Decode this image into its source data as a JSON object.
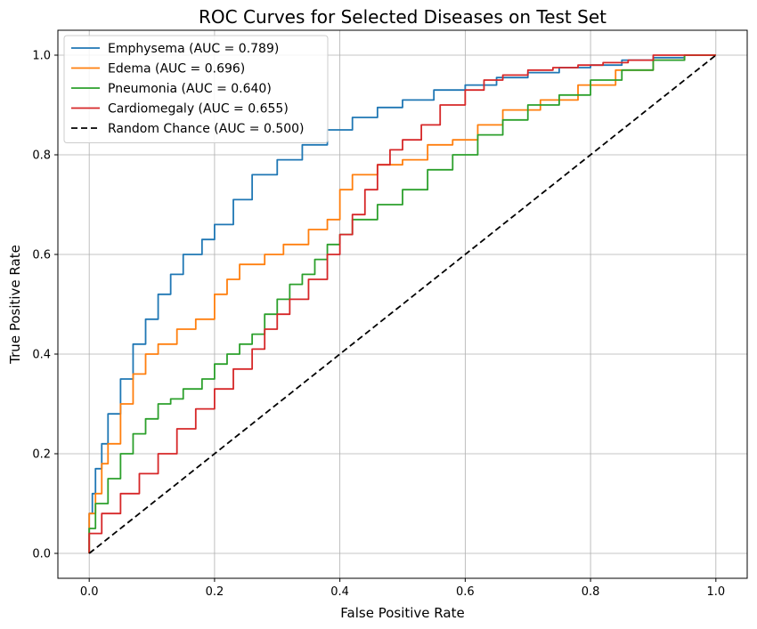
{
  "chart_data": {
    "type": "line",
    "title": "ROC Curves for Selected Diseases on Test Set",
    "xlabel": "False Positive Rate",
    "ylabel": "True Positive Rate",
    "xlim": [
      -0.05,
      1.05
    ],
    "ylim": [
      -0.05,
      1.05
    ],
    "xticks": [
      "0.0",
      "0.2",
      "0.4",
      "0.6",
      "0.8",
      "1.0"
    ],
    "yticks": [
      "0.0",
      "0.2",
      "0.4",
      "0.6",
      "0.8",
      "1.0"
    ],
    "grid": true,
    "legend_position": "top-left",
    "series": [
      {
        "name": "Emphysema (AUC = 0.789)",
        "color": "#1f77b4",
        "dash": "solid",
        "x": [
          0,
          0.005,
          0.01,
          0.02,
          0.03,
          0.05,
          0.07,
          0.09,
          0.11,
          0.13,
          0.15,
          0.18,
          0.2,
          0.23,
          0.26,
          0.3,
          0.34,
          0.38,
          0.42,
          0.46,
          0.5,
          0.55,
          0.6,
          0.65,
          0.7,
          0.75,
          0.8,
          0.85,
          0.9,
          0.95,
          1.0
        ],
        "y": [
          0,
          0.08,
          0.12,
          0.17,
          0.22,
          0.28,
          0.35,
          0.42,
          0.47,
          0.52,
          0.56,
          0.6,
          0.63,
          0.66,
          0.71,
          0.76,
          0.79,
          0.82,
          0.85,
          0.875,
          0.895,
          0.91,
          0.93,
          0.94,
          0.955,
          0.965,
          0.975,
          0.98,
          0.99,
          0.995,
          1.0
        ]
      },
      {
        "name": "Edema (AUC = 0.696)",
        "color": "#ff7f0e",
        "dash": "solid",
        "x": [
          0,
          0.01,
          0.02,
          0.03,
          0.05,
          0.07,
          0.09,
          0.11,
          0.14,
          0.17,
          0.2,
          0.22,
          0.24,
          0.26,
          0.28,
          0.31,
          0.35,
          0.38,
          0.4,
          0.42,
          0.46,
          0.5,
          0.54,
          0.58,
          0.62,
          0.66,
          0.72,
          0.78,
          0.84,
          0.9,
          0.95,
          1.0
        ],
        "y": [
          0,
          0.08,
          0.12,
          0.18,
          0.22,
          0.3,
          0.36,
          0.4,
          0.42,
          0.45,
          0.47,
          0.52,
          0.55,
          0.58,
          0.58,
          0.6,
          0.62,
          0.65,
          0.67,
          0.73,
          0.76,
          0.78,
          0.79,
          0.82,
          0.83,
          0.86,
          0.89,
          0.91,
          0.94,
          0.97,
          0.99,
          1.0
        ]
      },
      {
        "name": "Pneumonia (AUC = 0.640)",
        "color": "#2ca02c",
        "dash": "solid",
        "x": [
          0,
          0.01,
          0.03,
          0.05,
          0.07,
          0.09,
          0.11,
          0.13,
          0.15,
          0.18,
          0.2,
          0.22,
          0.24,
          0.26,
          0.28,
          0.3,
          0.32,
          0.34,
          0.36,
          0.38,
          0.4,
          0.42,
          0.46,
          0.5,
          0.54,
          0.58,
          0.62,
          0.66,
          0.7,
          0.75,
          0.8,
          0.85,
          0.9,
          0.95,
          1.0
        ],
        "y": [
          0,
          0.05,
          0.1,
          0.15,
          0.2,
          0.24,
          0.27,
          0.3,
          0.31,
          0.33,
          0.35,
          0.38,
          0.4,
          0.42,
          0.44,
          0.48,
          0.51,
          0.54,
          0.56,
          0.59,
          0.62,
          0.64,
          0.67,
          0.7,
          0.73,
          0.77,
          0.8,
          0.84,
          0.87,
          0.9,
          0.92,
          0.95,
          0.97,
          0.99,
          1.0
        ]
      },
      {
        "name": "Cardiomegaly (AUC = 0.655)",
        "color": "#d62728",
        "dash": "solid",
        "x": [
          0,
          0.02,
          0.05,
          0.08,
          0.11,
          0.14,
          0.17,
          0.2,
          0.23,
          0.26,
          0.28,
          0.3,
          0.32,
          0.35,
          0.38,
          0.4,
          0.42,
          0.44,
          0.46,
          0.48,
          0.5,
          0.53,
          0.56,
          0.6,
          0.63,
          0.66,
          0.7,
          0.74,
          0.78,
          0.82,
          0.86,
          0.9,
          0.95,
          1.0
        ],
        "y": [
          0,
          0.04,
          0.08,
          0.12,
          0.16,
          0.2,
          0.25,
          0.29,
          0.33,
          0.37,
          0.41,
          0.45,
          0.48,
          0.51,
          0.55,
          0.6,
          0.64,
          0.68,
          0.73,
          0.78,
          0.81,
          0.83,
          0.86,
          0.9,
          0.93,
          0.95,
          0.96,
          0.97,
          0.975,
          0.98,
          0.985,
          0.99,
          1.0,
          1.0
        ]
      },
      {
        "name": "Random Chance (AUC = 0.500)",
        "color": "#000000",
        "dash": "dashed",
        "x": [
          0,
          1.0
        ],
        "y": [
          0,
          1.0
        ]
      }
    ]
  }
}
